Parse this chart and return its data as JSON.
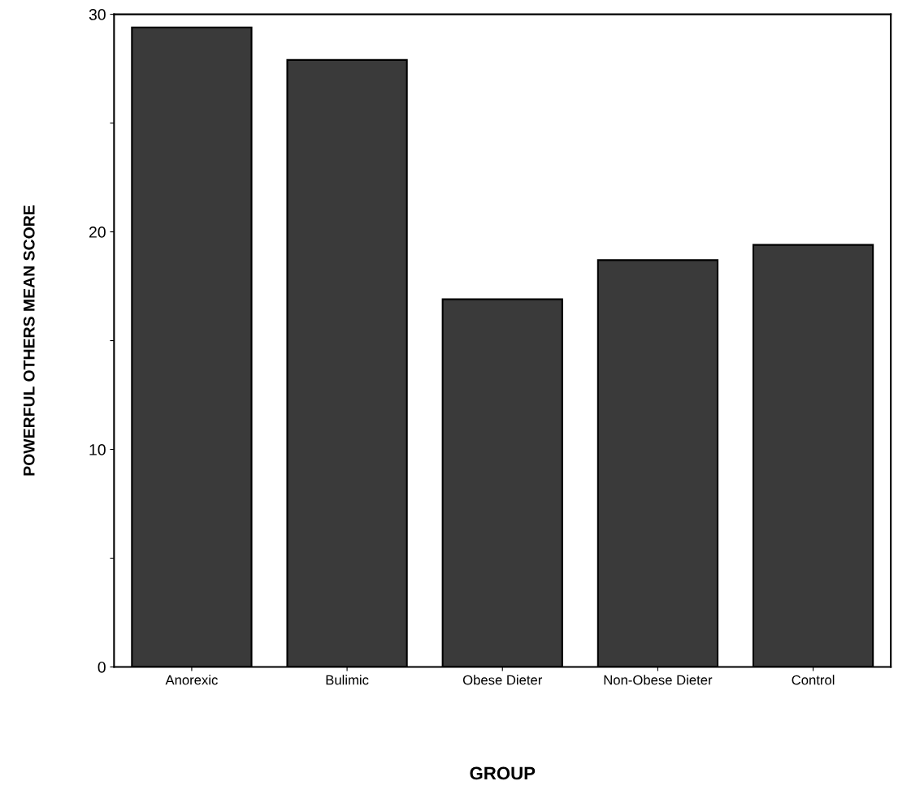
{
  "chart_data": {
    "type": "bar",
    "xlabel": "GROUP",
    "ylabel": "POWERFUL OTHERS MEAN SCORE",
    "categories": [
      "Anorexic",
      "Bulimic",
      "Obese Dieter",
      "Non-Obese Dieter",
      "Control"
    ],
    "values": [
      29.4,
      27.9,
      16.9,
      18.7,
      19.4
    ],
    "color": "#3a3a3a",
    "ylim": [
      0,
      30
    ],
    "yticks": [
      0,
      {
        "value": 5,
        "label": null
      },
      10,
      {
        "value": 15,
        "label": null
      },
      20,
      {
        "value": 25,
        "label": null
      },
      30
    ],
    "grid": false
  }
}
